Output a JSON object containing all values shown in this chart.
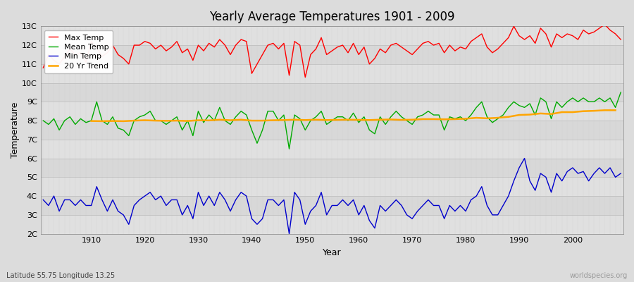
{
  "title": "Yearly Average Temperatures 1901 - 2009",
  "xlabel": "Year",
  "ylabel": "Temperature",
  "subtitle": "Latitude 55.75 Longitude 13.25",
  "watermark": "worldspecies.org",
  "bg_color": "#dcdcdc",
  "plot_bg_color": "#e8e8e8",
  "years": [
    1901,
    1902,
    1903,
    1904,
    1905,
    1906,
    1907,
    1908,
    1909,
    1910,
    1911,
    1912,
    1913,
    1914,
    1915,
    1916,
    1917,
    1918,
    1919,
    1920,
    1921,
    1922,
    1923,
    1924,
    1925,
    1926,
    1927,
    1928,
    1929,
    1930,
    1931,
    1932,
    1933,
    1934,
    1935,
    1936,
    1937,
    1938,
    1939,
    1940,
    1941,
    1942,
    1943,
    1944,
    1945,
    1946,
    1947,
    1948,
    1949,
    1950,
    1951,
    1952,
    1953,
    1954,
    1955,
    1956,
    1957,
    1958,
    1959,
    1960,
    1961,
    1962,
    1963,
    1964,
    1965,
    1966,
    1967,
    1968,
    1969,
    1970,
    1971,
    1972,
    1973,
    1974,
    1975,
    1976,
    1977,
    1978,
    1979,
    1980,
    1981,
    1982,
    1983,
    1984,
    1985,
    1986,
    1987,
    1988,
    1989,
    1990,
    1991,
    1992,
    1993,
    1994,
    1995,
    1996,
    1997,
    1998,
    1999,
    2000,
    2001,
    2002,
    2003,
    2004,
    2005,
    2006,
    2007,
    2008,
    2009
  ],
  "max_temp": [
    10.8,
    11.5,
    11.2,
    11.0,
    11.4,
    11.8,
    11.5,
    11.6,
    11.1,
    12.2,
    11.9,
    11.4,
    11.6,
    12.0,
    11.5,
    11.3,
    11.0,
    12.0,
    12.0,
    12.2,
    12.1,
    11.8,
    12.0,
    11.7,
    11.9,
    12.2,
    11.6,
    11.8,
    11.2,
    12.0,
    11.7,
    12.1,
    11.9,
    12.3,
    12.0,
    11.5,
    12.0,
    12.3,
    12.2,
    10.5,
    11.0,
    11.5,
    12.0,
    12.1,
    11.8,
    12.1,
    10.4,
    12.2,
    12.0,
    10.3,
    11.5,
    11.8,
    12.4,
    11.5,
    11.7,
    11.9,
    12.0,
    11.6,
    12.1,
    11.5,
    11.9,
    11.0,
    11.3,
    11.8,
    11.6,
    12.0,
    12.1,
    11.9,
    11.7,
    11.5,
    11.8,
    12.1,
    12.2,
    12.0,
    12.1,
    11.6,
    12.0,
    11.7,
    11.9,
    11.8,
    12.2,
    12.4,
    12.6,
    11.9,
    11.6,
    11.8,
    12.1,
    12.4,
    13.0,
    12.5,
    12.3,
    12.5,
    12.1,
    12.9,
    12.6,
    11.9,
    12.6,
    12.4,
    12.6,
    12.5,
    12.3,
    12.8,
    12.6,
    12.7,
    12.9,
    13.1,
    12.8,
    12.6,
    12.3
  ],
  "mean_temp": [
    8.0,
    7.8,
    8.1,
    7.5,
    8.0,
    8.2,
    7.8,
    8.1,
    7.9,
    8.0,
    9.0,
    8.0,
    7.8,
    8.2,
    7.6,
    7.5,
    7.2,
    8.0,
    8.2,
    8.3,
    8.5,
    8.0,
    8.0,
    7.8,
    8.0,
    8.2,
    7.5,
    8.0,
    7.2,
    8.5,
    7.9,
    8.3,
    8.0,
    8.7,
    8.0,
    7.8,
    8.2,
    8.5,
    8.3,
    7.5,
    6.8,
    7.5,
    8.5,
    8.5,
    8.0,
    8.3,
    6.5,
    8.3,
    8.1,
    7.5,
    8.0,
    8.2,
    8.5,
    7.8,
    8.0,
    8.2,
    8.2,
    8.0,
    8.4,
    7.9,
    8.2,
    7.5,
    7.3,
    8.2,
    7.8,
    8.2,
    8.5,
    8.2,
    8.0,
    7.8,
    8.2,
    8.3,
    8.5,
    8.3,
    8.3,
    7.5,
    8.2,
    8.1,
    8.2,
    8.0,
    8.3,
    8.7,
    9.0,
    8.2,
    7.9,
    8.1,
    8.3,
    8.7,
    9.0,
    8.8,
    8.7,
    8.9,
    8.3,
    9.2,
    9.0,
    8.1,
    9.0,
    8.7,
    9.0,
    9.2,
    9.0,
    9.2,
    9.0,
    9.0,
    9.2,
    9.0,
    9.2,
    8.7,
    9.5
  ],
  "min_temp": [
    3.8,
    3.5,
    4.0,
    3.2,
    3.8,
    3.8,
    3.5,
    3.8,
    3.5,
    3.5,
    4.5,
    3.8,
    3.2,
    3.8,
    3.2,
    3.0,
    2.5,
    3.5,
    3.8,
    4.0,
    4.2,
    3.8,
    4.0,
    3.5,
    3.8,
    3.8,
    3.0,
    3.5,
    2.8,
    4.2,
    3.5,
    4.0,
    3.5,
    4.2,
    3.8,
    3.2,
    3.8,
    4.2,
    4.0,
    2.8,
    2.5,
    2.8,
    3.8,
    3.8,
    3.5,
    3.8,
    2.0,
    4.2,
    3.8,
    2.5,
    3.2,
    3.5,
    4.2,
    3.0,
    3.5,
    3.5,
    3.8,
    3.5,
    3.8,
    3.0,
    3.5,
    2.7,
    2.3,
    3.5,
    3.2,
    3.5,
    3.8,
    3.5,
    3.0,
    2.8,
    3.2,
    3.5,
    3.8,
    3.5,
    3.5,
    2.8,
    3.5,
    3.2,
    3.5,
    3.2,
    3.8,
    4.0,
    4.5,
    3.5,
    3.0,
    3.0,
    3.5,
    4.0,
    4.8,
    5.5,
    6.0,
    4.8,
    4.3,
    5.2,
    5.0,
    4.2,
    5.2,
    4.8,
    5.3,
    5.5,
    5.2,
    5.3,
    4.8,
    5.2,
    5.5,
    5.2,
    5.5,
    5.0,
    5.2
  ],
  "trend_years": [
    1910,
    1912,
    1914,
    1916,
    1918,
    1920,
    1922,
    1924,
    1926,
    1928,
    1930,
    1932,
    1934,
    1936,
    1938,
    1940,
    1942,
    1944,
    1946,
    1948,
    1950,
    1952,
    1954,
    1956,
    1958,
    1960,
    1962,
    1964,
    1966,
    1968,
    1970,
    1972,
    1974,
    1976,
    1978,
    1980,
    1982,
    1984,
    1986,
    1988,
    1990,
    1992,
    1994,
    1996,
    1998,
    2000,
    2002,
    2004,
    2006,
    2008
  ],
  "trend_vals": [
    7.98,
    7.97,
    7.98,
    7.97,
    8.0,
    8.02,
    8.0,
    7.99,
    8.0,
    7.98,
    8.02,
    8.01,
    8.05,
    8.02,
    8.05,
    8.0,
    8.0,
    8.02,
    8.03,
    8.05,
    8.03,
    8.05,
    8.03,
    8.04,
    8.05,
    8.04,
    8.03,
    8.05,
    8.06,
    8.04,
    8.05,
    8.08,
    8.08,
    8.07,
    8.08,
    8.1,
    8.15,
    8.12,
    8.15,
    8.2,
    8.3,
    8.32,
    8.38,
    8.35,
    8.45,
    8.45,
    8.5,
    8.52,
    8.55,
    8.55
  ],
  "max_color": "#ff0000",
  "mean_color": "#00aa00",
  "min_color": "#0000cc",
  "trend_color": "#ffa500",
  "ylim": [
    2,
    13
  ],
  "yticks": [
    2,
    3,
    4,
    5,
    6,
    7,
    8,
    9,
    10,
    11,
    12,
    13
  ],
  "ytick_labels": [
    "2C",
    "3C",
    "4C",
    "5C",
    "6C",
    "7C",
    "8C",
    "9C",
    "10C",
    "11C",
    "12C",
    "13C"
  ],
  "xtick_start": 1910,
  "xtick_end": 2000,
  "xtick_step": 10,
  "band_colors": [
    "#e0e0e0",
    "#d8d8d8"
  ]
}
